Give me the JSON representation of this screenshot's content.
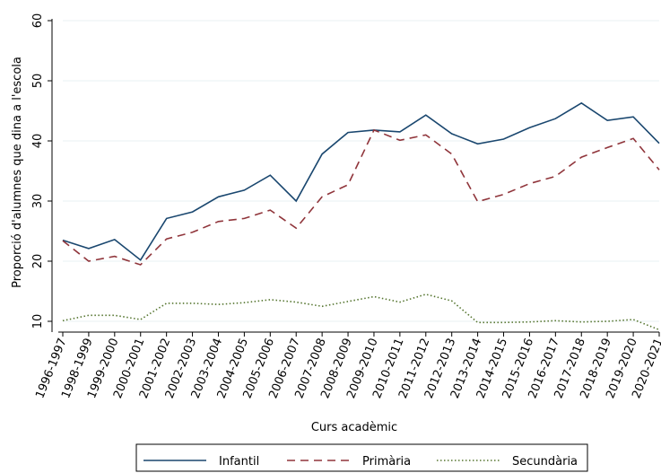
{
  "chart_data": {
    "type": "line",
    "title": "",
    "xlabel": "Curs acadèmic",
    "ylabel": "Proporció d'alumnes que dina a l'escola",
    "ylim": [
      8,
      60
    ],
    "yticks": [
      10,
      20,
      30,
      40,
      50,
      60
    ],
    "grid": true,
    "legend_position": "bottom",
    "categories": [
      "1996-1997",
      "1998-1999",
      "1999-2000",
      "2000-2001",
      "2001-2002",
      "2002-2003",
      "2003-2004",
      "2004-2005",
      "2005-2006",
      "2006-2007",
      "2007-2008",
      "2008-2009",
      "2009-2010",
      "2010-2011",
      "2011-2012",
      "2012-2013",
      "2013-2014",
      "2014-2015",
      "2015-2016",
      "2016-2017",
      "2017-2018",
      "2018-2019",
      "2019-2020",
      "2020-2021"
    ],
    "series": [
      {
        "name": "Infantil",
        "color": "#1a476f",
        "style": "solid",
        "values": [
          23.5,
          22.1,
          23.6,
          20.2,
          27.1,
          28.2,
          30.7,
          31.8,
          34.3,
          30.0,
          37.8,
          41.4,
          41.8,
          41.5,
          44.3,
          41.2,
          39.5,
          40.3,
          42.2,
          43.7,
          46.3,
          43.4,
          44.0,
          39.6
        ]
      },
      {
        "name": "Primària",
        "color": "#90353b",
        "style": "dashed",
        "values": [
          23.4,
          20.0,
          20.8,
          19.4,
          23.7,
          24.8,
          26.6,
          27.1,
          28.5,
          25.5,
          30.7,
          32.7,
          41.8,
          40.1,
          41.0,
          37.8,
          29.9,
          31.1,
          32.9,
          34.1,
          37.3,
          38.9,
          40.4,
          35.2
        ]
      },
      {
        "name": "Secundària",
        "color": "#55752f",
        "style": "dotted",
        "values": [
          10.1,
          11.0,
          11.0,
          10.3,
          13.0,
          13.0,
          12.8,
          13.1,
          13.6,
          13.2,
          12.5,
          13.3,
          14.1,
          13.2,
          14.5,
          13.4,
          9.8,
          9.8,
          9.9,
          10.1,
          9.9,
          10.0,
          10.3,
          8.6
        ]
      }
    ]
  }
}
